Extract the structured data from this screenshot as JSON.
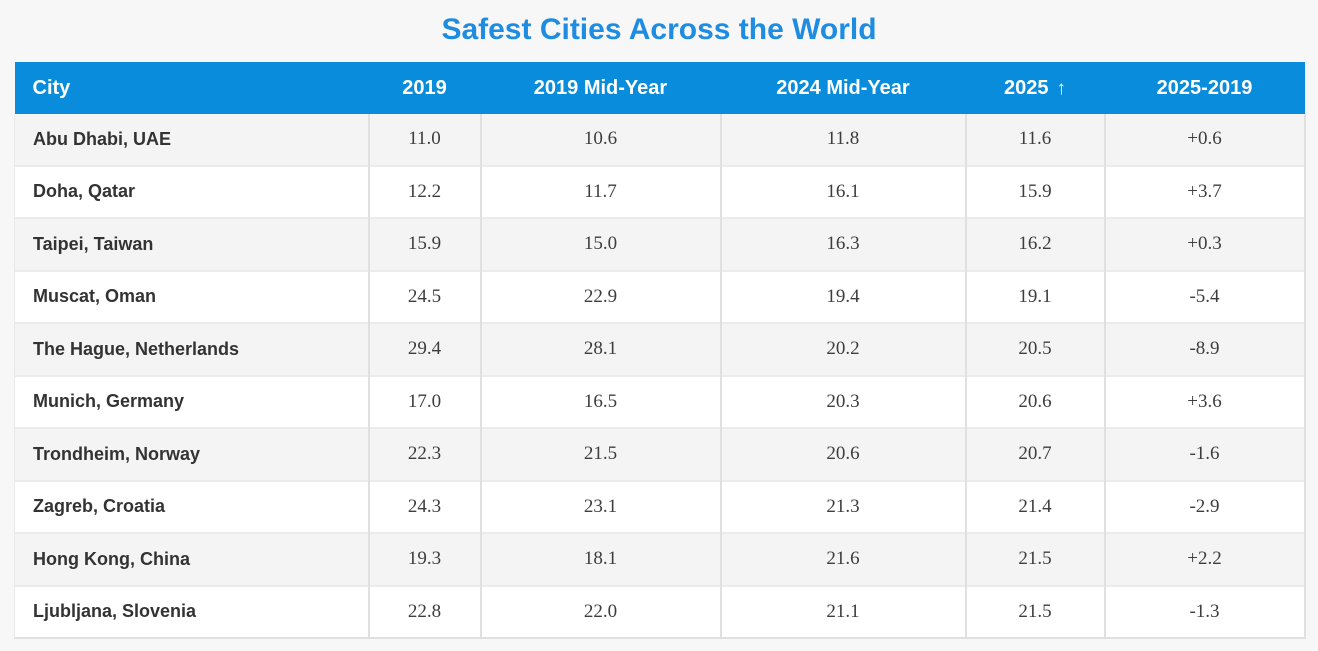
{
  "title": "Safest Cities Across the World",
  "colors": {
    "title_text": "#1e8ce0",
    "header_bg": "#088cdb",
    "header_text": "#ffffff",
    "row_alt_bg": "#f4f4f4",
    "row_bg": "#ffffff",
    "city_text": "#333333",
    "value_text": "#3d3d3d",
    "border": "#e0e0e0",
    "page_bg": "#f7f7f7"
  },
  "table": {
    "columns": [
      {
        "label": "City",
        "align": "left"
      },
      {
        "label": "2019",
        "align": "center"
      },
      {
        "label": "2019 Mid-Year",
        "align": "center"
      },
      {
        "label": "2024 Mid-Year",
        "align": "center"
      },
      {
        "label": "2025",
        "align": "center",
        "sort_indicator": "↑"
      },
      {
        "label": "2025-2019",
        "align": "center"
      }
    ],
    "rows": [
      {
        "city": "Abu Dhabi, UAE",
        "values": [
          "11.0",
          "10.6",
          "11.8",
          "11.6",
          "+0.6"
        ]
      },
      {
        "city": "Doha, Qatar",
        "values": [
          "12.2",
          "11.7",
          "16.1",
          "15.9",
          "+3.7"
        ]
      },
      {
        "city": "Taipei, Taiwan",
        "values": [
          "15.9",
          "15.0",
          "16.3",
          "16.2",
          "+0.3"
        ]
      },
      {
        "city": "Muscat, Oman",
        "values": [
          "24.5",
          "22.9",
          "19.4",
          "19.1",
          "-5.4"
        ]
      },
      {
        "city": "The Hague, Netherlands",
        "values": [
          "29.4",
          "28.1",
          "20.2",
          "20.5",
          "-8.9"
        ]
      },
      {
        "city": "Munich, Germany",
        "values": [
          "17.0",
          "16.5",
          "20.3",
          "20.6",
          "+3.6"
        ]
      },
      {
        "city": "Trondheim, Norway",
        "values": [
          "22.3",
          "21.5",
          "20.6",
          "20.7",
          "-1.6"
        ]
      },
      {
        "city": "Zagreb, Croatia",
        "values": [
          "24.3",
          "23.1",
          "21.3",
          "21.4",
          "-2.9"
        ]
      },
      {
        "city": "Hong Kong, China",
        "values": [
          "19.3",
          "18.1",
          "21.6",
          "21.5",
          "+2.2"
        ]
      },
      {
        "city": "Ljubljana, Slovenia",
        "values": [
          "22.8",
          "22.0",
          "21.1",
          "21.5",
          "-1.3"
        ]
      }
    ]
  },
  "chart_data": {
    "type": "table",
    "title": "Safest Cities Across the World",
    "columns": [
      "City",
      "2019",
      "2019 Mid-Year",
      "2024 Mid-Year",
      "2025",
      "2025-2019"
    ],
    "sorted_by": "2025",
    "sort_direction": "ascending",
    "rows": [
      [
        "Abu Dhabi, UAE",
        11.0,
        10.6,
        11.8,
        11.6,
        "+0.6"
      ],
      [
        "Doha, Qatar",
        12.2,
        11.7,
        16.1,
        15.9,
        "+3.7"
      ],
      [
        "Taipei, Taiwan",
        15.9,
        15.0,
        16.3,
        16.2,
        "+0.3"
      ],
      [
        "Muscat, Oman",
        24.5,
        22.9,
        19.4,
        19.1,
        "-5.4"
      ],
      [
        "The Hague, Netherlands",
        29.4,
        28.1,
        20.2,
        20.5,
        "-8.9"
      ],
      [
        "Munich, Germany",
        17.0,
        16.5,
        20.3,
        20.6,
        "+3.6"
      ],
      [
        "Trondheim, Norway",
        22.3,
        21.5,
        20.6,
        20.7,
        "-1.6"
      ],
      [
        "Zagreb, Croatia",
        24.3,
        23.1,
        21.3,
        21.4,
        "-2.9"
      ],
      [
        "Hong Kong, China",
        19.3,
        18.1,
        21.6,
        21.5,
        "+2.2"
      ],
      [
        "Ljubljana, Slovenia",
        22.8,
        22.0,
        21.1,
        21.5,
        "-1.3"
      ]
    ]
  }
}
